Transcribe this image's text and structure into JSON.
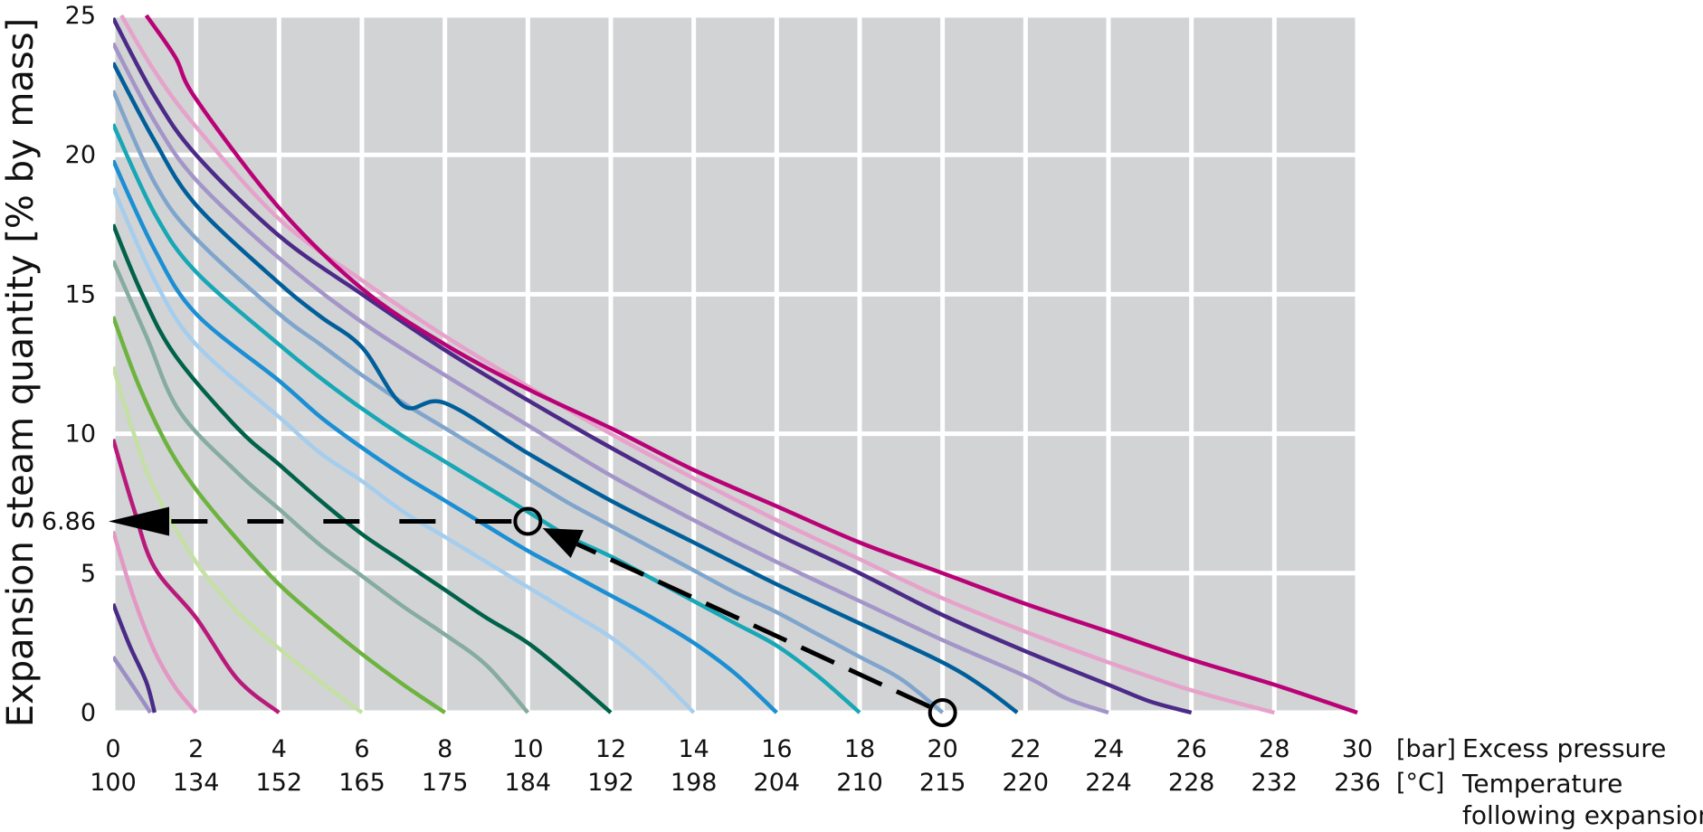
{
  "chart_data": {
    "type": "line",
    "ylabel": "Expansion steam quantity  [% by mass]",
    "x_unit": "[bar]",
    "x_caption": "Excess pressure",
    "t_unit": "[°C]",
    "t_caption_line1": "Temperature",
    "t_caption_line2": "following expansion",
    "xlim": [
      0,
      30
    ],
    "ylim": [
      0,
      25
    ],
    "x_ticks": [
      "0",
      "2",
      "4",
      "6",
      "8",
      "10",
      "12",
      "14",
      "16",
      "18",
      "20",
      "22",
      "24",
      "26",
      "28",
      "30"
    ],
    "t_ticks": [
      "100",
      "134",
      "152",
      "165",
      "175",
      "184",
      "192",
      "198",
      "204",
      "210",
      "215",
      "220",
      "224",
      "228",
      "232",
      "236"
    ],
    "y_ticks": [
      "0",
      "5",
      "10",
      "15",
      "20",
      "25"
    ],
    "grid": true,
    "series": [
      {
        "color": "#9b8ec4",
        "points": [
          [
            0,
            2.0
          ],
          [
            0.5,
            0.9
          ],
          [
            0.9,
            0
          ]
        ]
      },
      {
        "color": "#4a2a87",
        "points": [
          [
            0,
            3.9
          ],
          [
            0.4,
            2.4
          ],
          [
            0.8,
            1.1
          ],
          [
            1.0,
            0
          ]
        ]
      },
      {
        "color": "#e397c4",
        "points": [
          [
            0,
            6.5
          ],
          [
            0.5,
            4.1
          ],
          [
            1,
            2.2
          ],
          [
            1.5,
            0.9
          ],
          [
            2,
            0
          ]
        ]
      },
      {
        "color": "#b8197a",
        "points": [
          [
            0,
            9.8
          ],
          [
            0.5,
            7.3
          ],
          [
            1,
            5.2
          ],
          [
            2,
            3.4
          ],
          [
            3,
            1.2
          ],
          [
            4,
            0
          ]
        ]
      },
      {
        "color": "#c5e0a5",
        "points": [
          [
            0,
            12.4
          ],
          [
            0.5,
            10.0
          ],
          [
            1,
            8.0
          ],
          [
            2,
            5.4
          ],
          [
            3,
            3.6
          ],
          [
            4,
            2.3
          ],
          [
            5,
            1.1
          ],
          [
            6,
            0
          ]
        ]
      },
      {
        "color": "#6db33f",
        "points": [
          [
            0,
            14.2
          ],
          [
            0.6,
            11.8
          ],
          [
            1.3,
            9.6
          ],
          [
            2,
            8.0
          ],
          [
            3,
            6.2
          ],
          [
            4,
            4.6
          ],
          [
            5,
            3.3
          ],
          [
            6,
            2.1
          ],
          [
            7,
            1.0
          ],
          [
            8,
            0
          ]
        ]
      },
      {
        "color": "#86ac9f",
        "points": [
          [
            0,
            16.2
          ],
          [
            0.8,
            13.5
          ],
          [
            1.6,
            10.8
          ],
          [
            3,
            8.6
          ],
          [
            4,
            7.3
          ],
          [
            5,
            6.0
          ],
          [
            6,
            4.9
          ],
          [
            7,
            3.8
          ],
          [
            8,
            2.8
          ],
          [
            9,
            1.7
          ],
          [
            10,
            0
          ]
        ]
      },
      {
        "color": "#006249",
        "points": [
          [
            0,
            17.5
          ],
          [
            0.7,
            15.0
          ],
          [
            1.5,
            12.8
          ],
          [
            3,
            10.2
          ],
          [
            4,
            8.9
          ],
          [
            5,
            7.6
          ],
          [
            6,
            6.4
          ],
          [
            7,
            5.4
          ],
          [
            8,
            4.4
          ],
          [
            9,
            3.4
          ],
          [
            10,
            2.5
          ],
          [
            11,
            1.3
          ],
          [
            12,
            0
          ]
        ]
      },
      {
        "color": "#a5cdee",
        "points": [
          [
            0,
            18.8
          ],
          [
            1,
            15.5
          ],
          [
            2,
            13.2
          ],
          [
            4,
            10.6
          ],
          [
            5,
            9.3
          ],
          [
            6,
            8.3
          ],
          [
            7,
            7.2
          ],
          [
            8,
            6.3
          ],
          [
            9,
            5.4
          ],
          [
            10,
            4.5
          ],
          [
            11,
            3.6
          ],
          [
            12,
            2.7
          ],
          [
            13,
            1.5
          ],
          [
            14,
            0
          ]
        ]
      },
      {
        "color": "#1b8fd3",
        "points": [
          [
            0,
            19.8
          ],
          [
            1,
            16.6
          ],
          [
            2,
            14.3
          ],
          [
            4,
            11.9
          ],
          [
            5,
            10.6
          ],
          [
            6,
            9.5
          ],
          [
            7,
            8.5
          ],
          [
            8,
            7.6
          ],
          [
            9,
            6.7
          ],
          [
            10,
            5.8
          ],
          [
            11,
            5.0
          ],
          [
            12,
            4.2
          ],
          [
            13,
            3.4
          ],
          [
            14,
            2.5
          ],
          [
            15,
            1.4
          ],
          [
            16,
            0
          ]
        ]
      },
      {
        "color": "#17a7b5",
        "points": [
          [
            0,
            21.1
          ],
          [
            1,
            17.9
          ],
          [
            2,
            15.8
          ],
          [
            4,
            13.2
          ],
          [
            5,
            12.0
          ],
          [
            6,
            10.9
          ],
          [
            7,
            9.9
          ],
          [
            8,
            9.0
          ],
          [
            10,
            7.2
          ],
          [
            11,
            6.3
          ],
          [
            12,
            5.6
          ],
          [
            13,
            4.8
          ],
          [
            14,
            4.0
          ],
          [
            15,
            3.2
          ],
          [
            16,
            2.4
          ],
          [
            17,
            1.3
          ],
          [
            18,
            0
          ]
        ]
      },
      {
        "color": "#7fa5cc",
        "points": [
          [
            0,
            22.3
          ],
          [
            1,
            19.0
          ],
          [
            2,
            17.0
          ],
          [
            4,
            14.3
          ],
          [
            5,
            13.2
          ],
          [
            6,
            12.1
          ],
          [
            7,
            11.1
          ],
          [
            8,
            10.2
          ],
          [
            10,
            8.4
          ],
          [
            11,
            7.5
          ],
          [
            12,
            6.7
          ],
          [
            14,
            5.1
          ],
          [
            15,
            4.3
          ],
          [
            16,
            3.6
          ],
          [
            17,
            2.8
          ],
          [
            18,
            2.0
          ],
          [
            19,
            1.2
          ],
          [
            20,
            0
          ]
        ]
      },
      {
        "color": "#005f9a",
        "points": [
          [
            0,
            23.3
          ],
          [
            1,
            20.5
          ],
          [
            2,
            18.2
          ],
          [
            4,
            15.4
          ],
          [
            5,
            14.2
          ],
          [
            6,
            13.1
          ],
          [
            7,
            11.0
          ],
          [
            8,
            11.1
          ],
          [
            10,
            9.3
          ],
          [
            12,
            7.6
          ],
          [
            14,
            6.1
          ],
          [
            16,
            4.6
          ],
          [
            18,
            3.2
          ],
          [
            20,
            1.8
          ],
          [
            21,
            0.9
          ],
          [
            21.8,
            0
          ]
        ]
      },
      {
        "color": "#a395c8",
        "points": [
          [
            0,
            24.0
          ],
          [
            1,
            21.2
          ],
          [
            2,
            19.1
          ],
          [
            4,
            16.3
          ],
          [
            6,
            14.0
          ],
          [
            8,
            12.1
          ],
          [
            10,
            10.3
          ],
          [
            12,
            8.5
          ],
          [
            14,
            6.9
          ],
          [
            16,
            5.4
          ],
          [
            18,
            4.0
          ],
          [
            20,
            2.6
          ],
          [
            22,
            1.3
          ],
          [
            23,
            0.5
          ],
          [
            24,
            0
          ]
        ]
      },
      {
        "color": "#4b2a88",
        "points": [
          [
            0,
            24.9
          ],
          [
            1,
            22.1
          ],
          [
            2,
            20.0
          ],
          [
            4,
            17.1
          ],
          [
            6,
            15.0
          ],
          [
            8,
            13.0
          ],
          [
            10,
            11.2
          ],
          [
            12,
            9.5
          ],
          [
            14,
            7.9
          ],
          [
            16,
            6.4
          ],
          [
            18,
            5.0
          ],
          [
            20,
            3.5
          ],
          [
            22,
            2.2
          ],
          [
            24,
            1.0
          ],
          [
            25,
            0.4
          ],
          [
            26,
            0
          ]
        ]
      },
      {
        "color": "#e6a2ca",
        "points": [
          [
            0.2,
            25.0
          ],
          [
            1,
            23.0
          ],
          [
            2,
            21.0
          ],
          [
            4,
            17.7
          ],
          [
            6,
            15.5
          ],
          [
            8,
            13.5
          ],
          [
            10,
            11.7
          ],
          [
            12,
            10.0
          ],
          [
            14,
            8.4
          ],
          [
            16,
            6.9
          ],
          [
            18,
            5.5
          ],
          [
            20,
            4.1
          ],
          [
            22,
            2.9
          ],
          [
            24,
            1.8
          ],
          [
            26,
            0.8
          ],
          [
            28,
            0
          ]
        ]
      },
      {
        "color": "#b90276",
        "points": [
          [
            0.8,
            25.0
          ],
          [
            1.5,
            23.5
          ],
          [
            2,
            22.0
          ],
          [
            4,
            18.1
          ],
          [
            6,
            15.2
          ],
          [
            8,
            13.2
          ],
          [
            10,
            11.6
          ],
          [
            12,
            10.2
          ],
          [
            14,
            8.7
          ],
          [
            16,
            7.4
          ],
          [
            18,
            6.1
          ],
          [
            20,
            5.0
          ],
          [
            22,
            3.9
          ],
          [
            24,
            2.9
          ],
          [
            26,
            1.9
          ],
          [
            28,
            1.0
          ],
          [
            30,
            0
          ]
        ]
      }
    ],
    "annotation": {
      "y_label": "6.86",
      "start": {
        "x": 20,
        "y": 0
      },
      "end": {
        "x": 10,
        "y": 6.86
      },
      "horizontal_end_x": 0
    }
  }
}
